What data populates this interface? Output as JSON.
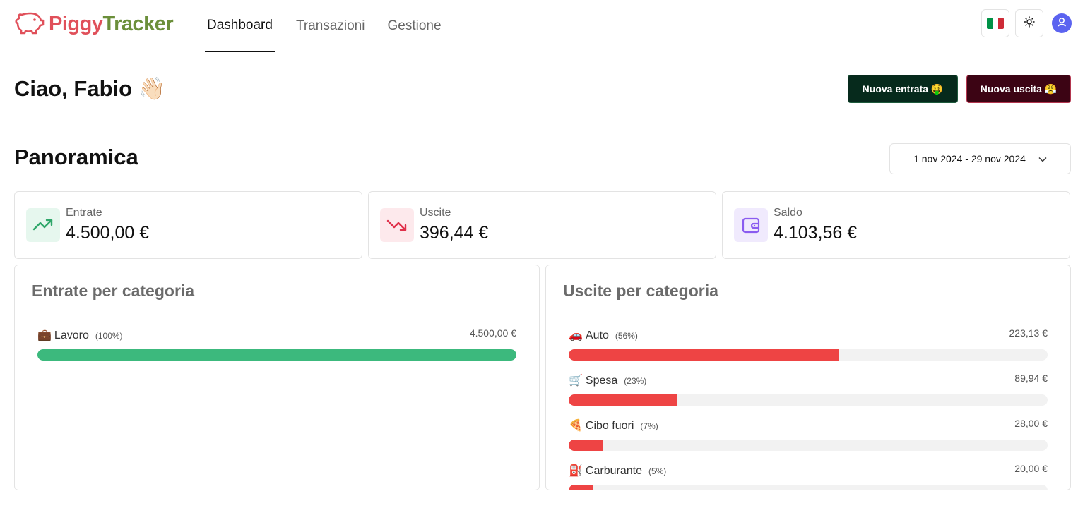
{
  "app": {
    "name_part1": "Piggy",
    "name_part2": "Tracker"
  },
  "nav": {
    "dashboard": "Dashboard",
    "transactions": "Transazioni",
    "management": "Gestione"
  },
  "greeting": "Ciao, Fabio 👋🏻",
  "actions": {
    "new_income": "Nuova entrata 🤑",
    "new_expense": "Nuova uscita 😤"
  },
  "overview": {
    "title": "Panoramica",
    "date_range": "1 nov 2024 - 29 nov 2024"
  },
  "stats": {
    "income": {
      "label": "Entrate",
      "value": "4.500,00 €"
    },
    "expense": {
      "label": "Uscite",
      "value": "396,44 €"
    },
    "balance": {
      "label": "Saldo",
      "value": "4.103,56 €"
    }
  },
  "income_by_category": {
    "title": "Entrate per categoria",
    "items": [
      {
        "emoji": "💼",
        "name": "Lavoro",
        "pct_label": "(100%)",
        "amount": "4.500,00 €",
        "fraction": 1.0
      }
    ]
  },
  "expense_by_category": {
    "title": "Uscite per categoria",
    "items": [
      {
        "emoji": "🚗",
        "name": "Auto",
        "pct_label": "(56%)",
        "amount": "223,13 €",
        "fraction": 0.563
      },
      {
        "emoji": "🛒",
        "name": "Spesa",
        "pct_label": "(23%)",
        "amount": "89,94 €",
        "fraction": 0.227
      },
      {
        "emoji": "🍕",
        "name": "Cibo fuori",
        "pct_label": "(7%)",
        "amount": "28,00 €",
        "fraction": 0.071
      },
      {
        "emoji": "⛽",
        "name": "Carburante",
        "pct_label": "(5%)",
        "amount": "20,00 €",
        "fraction": 0.05
      }
    ]
  },
  "colors": {
    "income_bar": "#3cb97d",
    "expense_bar": "#ee4444",
    "flag_green": "#009246",
    "flag_white": "#ffffff",
    "flag_red": "#ce2b37"
  }
}
